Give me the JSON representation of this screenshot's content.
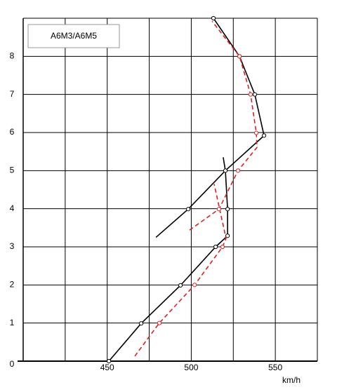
{
  "chart_data": {
    "type": "line",
    "title": "A6M3/A6M5",
    "x_label": "km/h",
    "xlim": [
      400,
      575
    ],
    "ylim": [
      0,
      9
    ],
    "xticks": [
      450,
      500,
      550
    ],
    "yticks": [
      0,
      1,
      2,
      3,
      4,
      5,
      6,
      7,
      8
    ],
    "xgrid": [
      400,
      425,
      450,
      475,
      500,
      525,
      550,
      575
    ],
    "ygrid": [
      1,
      2,
      3,
      4,
      5,
      6,
      7,
      8,
      9
    ],
    "series": [
      {
        "color": "#000000",
        "dashed": false,
        "line": true,
        "x": [
          451,
          470.2,
          493.6,
          514.5,
          521.6,
          null,
          479,
          498.2,
          520.3,
          543.3,
          null,
          519,
          520.3,
          521.6,
          521.6,
          null,
          543.3,
          537.8,
          528.7,
          513.2
        ],
        "values": [
          0,
          0.99,
          1.99,
          3.0,
          3.29,
          null,
          3.25,
          3.99,
          5.0,
          5.92,
          null,
          5.35,
          5.0,
          3.99,
          3.29,
          null,
          5.92,
          7.0,
          8.0,
          9.0
        ]
      },
      {
        "color": "#000000",
        "line": false,
        "x": [
          451,
          470.2,
          493.6,
          514.5,
          521.6,
          498.2,
          521.6,
          520.3,
          543.3,
          537.8,
          528.7,
          513.2
        ],
        "values": [
          0,
          0.99,
          1.99,
          3.0,
          3.29,
          3.99,
          3.99,
          5.0,
          5.92,
          7.0,
          8.0,
          9.0
        ]
      },
      {
        "color": "#e02020",
        "dashed": true,
        "line": true,
        "x": [
          466.4,
          481,
          502,
          518.6,
          520.7,
          513.6,
          null,
          499,
          516.5,
          527.8,
          539.1,
          538.7,
          535.3,
          528.7,
          512.4
        ],
        "values": [
          0.13,
          1.0,
          2.0,
          3.0,
          3.22,
          4.65,
          null,
          3.44,
          3.99,
          5.0,
          5.61,
          5.99,
          7.0,
          8.0,
          8.92
        ]
      },
      {
        "color": "#e02020",
        "line": false,
        "x": [
          481,
          502,
          518.6,
          516.5,
          527.8,
          538.7,
          535.3,
          528.7
        ],
        "values": [
          1.0,
          2.0,
          3.0,
          3.99,
          5.0,
          5.99,
          7.0,
          8.0
        ]
      }
    ]
  }
}
